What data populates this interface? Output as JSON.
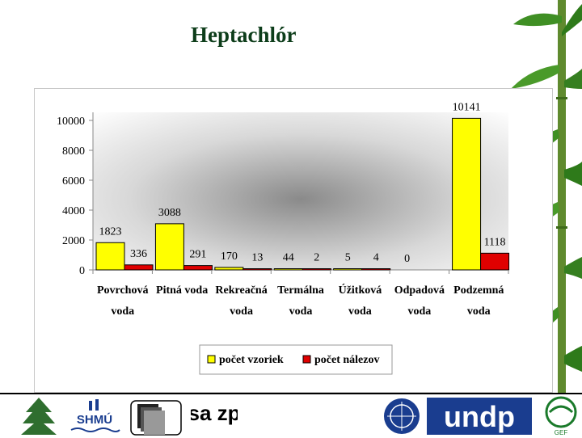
{
  "slide": {
    "title": "Heptachlór"
  },
  "colors": {
    "series1": "#ffff00",
    "series2": "#e00000",
    "title": "#0d3d1a"
  },
  "logos": [
    {
      "name": "tree-logo"
    },
    {
      "name": "shmu-logo",
      "text": "SHMÚ"
    },
    {
      "name": "book-logo"
    },
    {
      "name": "sazp-logo",
      "text": "sa zp"
    },
    {
      "name": "un-emblem-logo"
    },
    {
      "name": "undp-logo",
      "text": "undp"
    },
    {
      "name": "gef-logo",
      "text": "GEF"
    }
  ],
  "chart_data": {
    "type": "bar",
    "categories": [
      [
        "Povrchová",
        "voda"
      ],
      [
        "Pitná voda"
      ],
      [
        "Rekreačná",
        "voda"
      ],
      [
        "Termálna",
        "voda"
      ],
      [
        "Úžitková",
        "voda"
      ],
      [
        "Odpadová",
        "voda"
      ],
      [
        "Podzemná",
        "voda"
      ]
    ],
    "series": [
      {
        "name": "počet vzoriek",
        "values": [
          1823,
          3088,
          170,
          44,
          5,
          0,
          10141
        ],
        "color": "#ffff00"
      },
      {
        "name": "počet nálezov",
        "values": [
          336,
          291,
          13,
          2,
          4,
          null,
          1118
        ],
        "color": "#e00000"
      }
    ],
    "ylim": [
      0,
      10000
    ],
    "yticks": [
      0,
      2000,
      4000,
      6000,
      8000,
      10000
    ],
    "legend": "bottom",
    "grid": false
  }
}
